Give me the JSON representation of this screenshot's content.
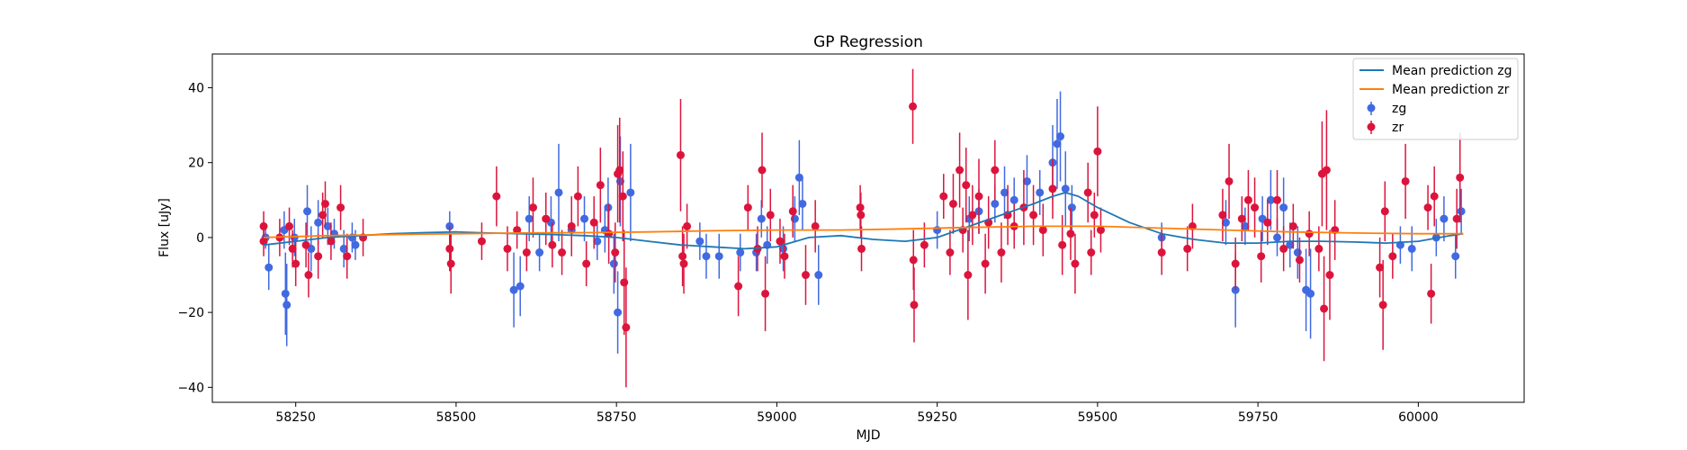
{
  "chart_data": {
    "type": "scatter",
    "title": "GP Regression",
    "xlabel": "MJD",
    "ylabel": "Flux [uJy]",
    "xlim": [
      58120,
      60165
    ],
    "ylim": [
      -44,
      49
    ],
    "xticks": [
      58250,
      58500,
      58750,
      59000,
      59250,
      59500,
      59750,
      60000
    ],
    "xtick_labels": [
      "58250",
      "58500",
      "58750",
      "59000",
      "59250",
      "59500",
      "59750",
      "60000"
    ],
    "yticks": [
      -40,
      -20,
      0,
      20,
      40
    ],
    "ytick_labels": [
      "−40",
      "−20",
      "0",
      "20",
      "40"
    ],
    "grid": false,
    "legend_position": "top-right",
    "legend": [
      "Mean prediction zg",
      "Mean prediction zr",
      "zg",
      "zr"
    ],
    "colors": {
      "mean_zg": "#1f77b4",
      "mean_zr": "#ff7f0e",
      "zg": "#4169e1",
      "zr": "#dc143c"
    },
    "series": [
      {
        "name": "Mean prediction zg",
        "kind": "line",
        "x": [
          58200,
          58250,
          58300,
          58350,
          58400,
          58450,
          58500,
          58550,
          58600,
          58650,
          58700,
          58750,
          58800,
          58850,
          58900,
          58950,
          59000,
          59050,
          59100,
          59150,
          59200,
          59250,
          59300,
          59350,
          59400,
          59430,
          59450,
          59470,
          59500,
          59550,
          59600,
          59650,
          59700,
          59750,
          59800,
          59850,
          59900,
          59950,
          60000,
          60050,
          60070
        ],
        "y": [
          -2,
          -1,
          0,
          0.5,
          1,
          1.3,
          1.5,
          1.2,
          1,
          0.8,
          0.5,
          0,
          -1,
          -2,
          -2.5,
          -3,
          -2.5,
          0,
          0.5,
          -0.5,
          -1,
          0,
          3,
          6,
          9,
          11,
          12,
          11,
          8,
          4,
          1,
          -0.5,
          -1.5,
          -1.5,
          -1,
          -1,
          -1.2,
          -1.5,
          -1,
          0.5,
          1
        ]
      },
      {
        "name": "Mean prediction zr",
        "kind": "line",
        "x": [
          58200,
          58300,
          58400,
          58500,
          58600,
          58700,
          58800,
          58900,
          59000,
          59100,
          59200,
          59300,
          59400,
          59500,
          59600,
          59700,
          59800,
          59900,
          60000,
          60070
        ],
        "y": [
          0,
          0.5,
          0.8,
          1,
          1.2,
          1.3,
          1.5,
          1.8,
          2,
          2,
          2.3,
          2.7,
          3,
          3,
          2.5,
          2,
          1.5,
          1.2,
          1,
          1
        ]
      },
      {
        "name": "zg",
        "kind": "errorbar",
        "points": [
          [
            58203,
            0,
            3
          ],
          [
            58208,
            -8,
            6
          ],
          [
            58232,
            2,
            5
          ],
          [
            58234,
            -15,
            11
          ],
          [
            58236,
            -18,
            11
          ],
          [
            58248,
            0,
            5
          ],
          [
            58268,
            7,
            7
          ],
          [
            58274,
            -3,
            6
          ],
          [
            58285,
            4,
            6
          ],
          [
            58300,
            3,
            5
          ],
          [
            58310,
            1,
            4
          ],
          [
            58325,
            -3,
            5
          ],
          [
            58338,
            0,
            4
          ],
          [
            58343,
            -2,
            4
          ],
          [
            58490,
            3,
            4
          ],
          [
            58590,
            -14,
            10
          ],
          [
            58600,
            -13,
            8
          ],
          [
            58614,
            5,
            6
          ],
          [
            58630,
            -4,
            5
          ],
          [
            58648,
            4,
            7
          ],
          [
            58660,
            12,
            13
          ],
          [
            58680,
            2,
            6
          ],
          [
            58700,
            5,
            6
          ],
          [
            58720,
            -1,
            5
          ],
          [
            58732,
            2,
            6
          ],
          [
            58737,
            8,
            8
          ],
          [
            58746,
            -7,
            8
          ],
          [
            58752,
            -20,
            11
          ],
          [
            58756,
            15,
            12
          ],
          [
            58772,
            12,
            13
          ],
          [
            58880,
            -1,
            5
          ],
          [
            58890,
            -5,
            6
          ],
          [
            58910,
            -5,
            6
          ],
          [
            58943,
            -4,
            5
          ],
          [
            58968,
            -4,
            5
          ],
          [
            58976,
            5,
            5
          ],
          [
            58985,
            -2,
            5
          ],
          [
            59010,
            -3,
            6
          ],
          [
            59028,
            5,
            6
          ],
          [
            59035,
            16,
            10
          ],
          [
            59040,
            9,
            7
          ],
          [
            59065,
            -10,
            8
          ],
          [
            59250,
            2,
            5
          ],
          [
            59300,
            5,
            6
          ],
          [
            59315,
            7,
            6
          ],
          [
            59340,
            9,
            5
          ],
          [
            59355,
            12,
            7
          ],
          [
            59370,
            10,
            6
          ],
          [
            59390,
            15,
            7
          ],
          [
            59410,
            12,
            6
          ],
          [
            59430,
            20,
            10
          ],
          [
            59437,
            25,
            12
          ],
          [
            59442,
            27,
            12
          ],
          [
            59450,
            13,
            10
          ],
          [
            59460,
            8,
            6
          ],
          [
            59600,
            0,
            4
          ],
          [
            59700,
            4,
            6
          ],
          [
            59715,
            -14,
            10
          ],
          [
            59730,
            3,
            5
          ],
          [
            59757,
            5,
            6
          ],
          [
            59770,
            10,
            8
          ],
          [
            59780,
            0,
            5
          ],
          [
            59790,
            8,
            8
          ],
          [
            59800,
            -2,
            6
          ],
          [
            59812,
            -4,
            7
          ],
          [
            59825,
            -14,
            11
          ],
          [
            59832,
            -15,
            12
          ],
          [
            59972,
            -2,
            5
          ],
          [
            59990,
            -3,
            6
          ],
          [
            60028,
            0,
            5
          ],
          [
            60040,
            5,
            6
          ],
          [
            60058,
            -5,
            6
          ],
          [
            60067,
            7,
            6
          ]
        ]
      },
      {
        "name": "zr",
        "kind": "errorbar",
        "points": [
          [
            58200,
            3,
            4
          ],
          [
            58200,
            -1,
            4
          ],
          [
            58225,
            0,
            5
          ],
          [
            58240,
            3,
            5
          ],
          [
            58245,
            -3,
            5
          ],
          [
            58250,
            -7,
            6
          ],
          [
            58266,
            -2,
            6
          ],
          [
            58270,
            -10,
            6
          ],
          [
            58285,
            -5,
            6
          ],
          [
            58292,
            6,
            6
          ],
          [
            58296,
            9,
            6
          ],
          [
            58305,
            -1,
            5
          ],
          [
            58320,
            8,
            6
          ],
          [
            58330,
            -5,
            6
          ],
          [
            58355,
            0,
            5
          ],
          [
            58490,
            -3,
            6
          ],
          [
            58492,
            -7,
            8
          ],
          [
            58540,
            -1,
            5
          ],
          [
            58563,
            11,
            8
          ],
          [
            58580,
            -3,
            6
          ],
          [
            58595,
            2,
            5
          ],
          [
            58610,
            -4,
            5
          ],
          [
            58620,
            8,
            8
          ],
          [
            58640,
            5,
            7
          ],
          [
            58650,
            -2,
            6
          ],
          [
            58665,
            -4,
            6
          ],
          [
            58680,
            3,
            8
          ],
          [
            58690,
            11,
            8
          ],
          [
            58703,
            -7,
            6
          ],
          [
            58715,
            4,
            7
          ],
          [
            58725,
            14,
            10
          ],
          [
            58738,
            1,
            8
          ],
          [
            58748,
            -4,
            8
          ],
          [
            58752,
            17,
            13
          ],
          [
            58755,
            18,
            14
          ],
          [
            58760,
            11,
            12
          ],
          [
            58762,
            -12,
            14
          ],
          [
            58765,
            -24,
            16
          ],
          [
            58850,
            22,
            15
          ],
          [
            58853,
            -5,
            8
          ],
          [
            58855,
            -7,
            8
          ],
          [
            58860,
            3,
            6
          ],
          [
            58940,
            -13,
            8
          ],
          [
            58955,
            8,
            6
          ],
          [
            58970,
            -3,
            6
          ],
          [
            58977,
            18,
            10
          ],
          [
            58982,
            -15,
            10
          ],
          [
            58990,
            6,
            7
          ],
          [
            59005,
            -1,
            6
          ],
          [
            59012,
            -5,
            6
          ],
          [
            59025,
            7,
            7
          ],
          [
            59045,
            -10,
            8
          ],
          [
            59060,
            3,
            7
          ],
          [
            59130,
            8,
            6
          ],
          [
            59131,
            6,
            6
          ],
          [
            59132,
            -3,
            6
          ],
          [
            59212,
            35,
            10
          ],
          [
            59213,
            -6,
            8
          ],
          [
            59214,
            -18,
            10
          ],
          [
            59230,
            -2,
            6
          ],
          [
            59260,
            11,
            6
          ],
          [
            59270,
            -4,
            6
          ],
          [
            59275,
            9,
            8
          ],
          [
            59285,
            18,
            10
          ],
          [
            59290,
            2,
            6
          ],
          [
            59295,
            14,
            10
          ],
          [
            59298,
            -10,
            12
          ],
          [
            59305,
            6,
            8
          ],
          [
            59315,
            11,
            10
          ],
          [
            59325,
            -7,
            8
          ],
          [
            59330,
            4,
            7
          ],
          [
            59340,
            18,
            8
          ],
          [
            59350,
            -4,
            8
          ],
          [
            59360,
            6,
            8
          ],
          [
            59370,
            3,
            6
          ],
          [
            59385,
            8,
            10
          ],
          [
            59400,
            6,
            8
          ],
          [
            59415,
            2,
            7
          ],
          [
            59430,
            13,
            8
          ],
          [
            59445,
            -2,
            8
          ],
          [
            59458,
            1,
            7
          ],
          [
            59465,
            -7,
            8
          ],
          [
            59485,
            12,
            8
          ],
          [
            59490,
            -4,
            6
          ],
          [
            59495,
            6,
            6
          ],
          [
            59500,
            23,
            12
          ],
          [
            59505,
            2,
            6
          ],
          [
            59600,
            -4,
            6
          ],
          [
            59640,
            -3,
            6
          ],
          [
            59648,
            3,
            6
          ],
          [
            59695,
            6,
            7
          ],
          [
            59705,
            15,
            10
          ],
          [
            59715,
            -7,
            7
          ],
          [
            59725,
            5,
            6
          ],
          [
            59735,
            10,
            8
          ],
          [
            59745,
            8,
            8
          ],
          [
            59755,
            -5,
            7
          ],
          [
            59765,
            4,
            6
          ],
          [
            59780,
            10,
            8
          ],
          [
            59790,
            -3,
            6
          ],
          [
            59805,
            3,
            6
          ],
          [
            59815,
            -6,
            6
          ],
          [
            59830,
            1,
            6
          ],
          [
            59845,
            -3,
            6
          ],
          [
            59850,
            17,
            14
          ],
          [
            59853,
            -19,
            14
          ],
          [
            59857,
            18,
            16
          ],
          [
            59862,
            -10,
            12
          ],
          [
            59870,
            2,
            8
          ],
          [
            59940,
            -8,
            8
          ],
          [
            59945,
            -18,
            12
          ],
          [
            59948,
            7,
            8
          ],
          [
            59960,
            -5,
            6
          ],
          [
            59980,
            15,
            10
          ],
          [
            60015,
            8,
            6
          ],
          [
            60020,
            -15,
            8
          ],
          [
            60025,
            11,
            8
          ],
          [
            60060,
            5,
            8
          ],
          [
            60065,
            16,
            12
          ]
        ]
      }
    ]
  }
}
